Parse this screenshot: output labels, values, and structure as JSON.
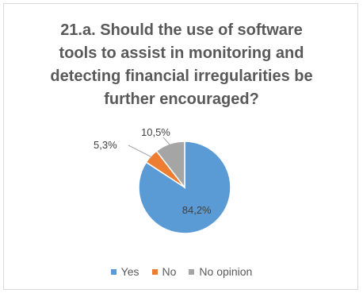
{
  "chart_data": {
    "type": "pie",
    "title_lines": [
      "21.a. Should the use of software",
      "tools to assist in monitoring and",
      "detecting financial irregularities be",
      "further encouraged?"
    ],
    "categories": [
      "Yes",
      "No",
      "No opinion"
    ],
    "values": [
      84.2,
      5.3,
      10.5
    ],
    "data_labels": [
      "84,2%",
      "5,3%",
      "10,5%"
    ],
    "colors": [
      "#5b9bd5",
      "#ed7d31",
      "#a5a5a5"
    ],
    "legend_position": "bottom"
  }
}
